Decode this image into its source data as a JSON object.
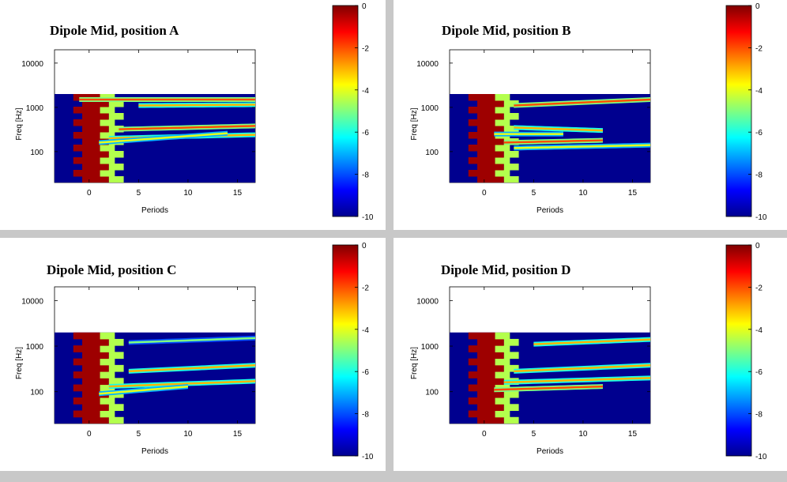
{
  "colors": {
    "background": "#c8c8c8",
    "panel": "#ffffff",
    "colormap": [
      "#00008f",
      "#0000ff",
      "#0080ff",
      "#00ffff",
      "#80ff80",
      "#ffff00",
      "#ff8000",
      "#ff0000",
      "#800000"
    ]
  },
  "chart_data": [
    {
      "type": "heatmap",
      "title": "Dipole Mid, position A",
      "xlabel": "Periods",
      "ylabel": "Freq [Hz]",
      "xticks": [
        "0",
        "5",
        "10",
        "15"
      ],
      "xtick_values": [
        0,
        5,
        10,
        15
      ],
      "xlim": [
        -3.5,
        16.8
      ],
      "yticks": [
        "100",
        "1000",
        "10000"
      ],
      "ytick_values": [
        100,
        1000,
        10000
      ],
      "ylim": [
        20,
        20000
      ],
      "yscale": "log",
      "data_ymax": 2000,
      "colorbar": {
        "ticks": [
          "0",
          "-2",
          "-4",
          "-6",
          "-8",
          "-10"
        ],
        "tick_values": [
          0,
          -2,
          -4,
          -6,
          -8,
          -10
        ],
        "range": [
          -10,
          0
        ]
      },
      "bands": [
        {
          "f0": 1500,
          "f1": 1500,
          "t0": -1,
          "t1": 16.8,
          "level": -2
        },
        {
          "f0": 1100,
          "f1": 1150,
          "t0": 5,
          "t1": 16.8,
          "level": -3
        },
        {
          "f0": 320,
          "f1": 380,
          "t0": 3,
          "t1": 16.8,
          "level": -2
        },
        {
          "f0": 200,
          "f1": 240,
          "t0": 2,
          "t1": 16.8,
          "level": -3
        },
        {
          "f0": 160,
          "f1": 260,
          "t0": 1,
          "t1": 14,
          "level": -4
        }
      ]
    },
    {
      "type": "heatmap",
      "title": "Dipole Mid, position B",
      "xlabel": "Periods",
      "ylabel": "Freq [Hz]",
      "xticks": [
        "0",
        "5",
        "10",
        "15"
      ],
      "xtick_values": [
        0,
        5,
        10,
        15
      ],
      "xlim": [
        -3.5,
        16.8
      ],
      "yticks": [
        "100",
        "1000",
        "10000"
      ],
      "ytick_values": [
        100,
        1000,
        10000
      ],
      "ylim": [
        20,
        20000
      ],
      "yscale": "log",
      "data_ymax": 2000,
      "colorbar": {
        "ticks": [
          "0",
          "-2",
          "-4",
          "-6",
          "-8",
          "-10"
        ],
        "tick_values": [
          0,
          -2,
          -4,
          -6,
          -8,
          -10
        ],
        "range": [
          -10,
          0
        ]
      },
      "bands": [
        {
          "f0": 1100,
          "f1": 1500,
          "t0": 3,
          "t1": 16.8,
          "level": -2
        },
        {
          "f0": 350,
          "f1": 300,
          "t0": 3,
          "t1": 12,
          "level": -3
        },
        {
          "f0": 160,
          "f1": 180,
          "t0": 2,
          "t1": 12,
          "level": -2
        },
        {
          "f0": 120,
          "f1": 140,
          "t0": 3,
          "t1": 16.8,
          "level": -4
        },
        {
          "f0": 250,
          "f1": 250,
          "t0": 1,
          "t1": 8,
          "level": -4
        }
      ]
    },
    {
      "type": "heatmap",
      "title": "Dipole Mid, position C",
      "xlabel": "Periods",
      "ylabel": "Freq [Hz]",
      "xticks": [
        "0",
        "5",
        "10",
        "15"
      ],
      "xtick_values": [
        0,
        5,
        10,
        15
      ],
      "xlim": [
        -3.5,
        16.8
      ],
      "yticks": [
        "100",
        "1000",
        "10000"
      ],
      "ytick_values": [
        100,
        1000,
        10000
      ],
      "ylim": [
        20,
        20000
      ],
      "yscale": "log",
      "data_ymax": 2000,
      "colorbar": {
        "ticks": [
          "0",
          "-2",
          "-4",
          "-6",
          "-8",
          "-10"
        ],
        "tick_values": [
          0,
          -2,
          -4,
          -6,
          -8,
          -10
        ],
        "range": [
          -10,
          0
        ]
      },
      "bands": [
        {
          "f0": 1200,
          "f1": 1500,
          "t0": 4,
          "t1": 16.8,
          "level": -5
        },
        {
          "f0": 280,
          "f1": 380,
          "t0": 4,
          "t1": 16.8,
          "level": -3
        },
        {
          "f0": 130,
          "f1": 170,
          "t0": 2,
          "t1": 16.8,
          "level": -3
        },
        {
          "f0": 90,
          "f1": 130,
          "t0": 1,
          "t1": 10,
          "level": -4
        }
      ]
    },
    {
      "type": "heatmap",
      "title": "Dipole Mid, position D",
      "xlabel": "Periods",
      "ylabel": "Freq [Hz]",
      "xticks": [
        "0",
        "5",
        "10",
        "15"
      ],
      "xtick_values": [
        0,
        5,
        10,
        15
      ],
      "xlim": [
        -3.5,
        16.8
      ],
      "yticks": [
        "100",
        "1000",
        "10000"
      ],
      "ytick_values": [
        100,
        1000,
        10000
      ],
      "ylim": [
        20,
        20000
      ],
      "yscale": "log",
      "data_ymax": 2000,
      "colorbar": {
        "ticks": [
          "0",
          "-2",
          "-4",
          "-6",
          "-8",
          "-10"
        ],
        "tick_values": [
          0,
          -2,
          -4,
          -6,
          -8,
          -10
        ],
        "range": [
          -10,
          0
        ]
      },
      "bands": [
        {
          "f0": 1100,
          "f1": 1400,
          "t0": 5,
          "t1": 16.8,
          "level": -3
        },
        {
          "f0": 280,
          "f1": 380,
          "t0": 3,
          "t1": 16.8,
          "level": -3
        },
        {
          "f0": 160,
          "f1": 200,
          "t0": 2,
          "t1": 16.8,
          "level": -3
        },
        {
          "f0": 110,
          "f1": 130,
          "t0": 1,
          "t1": 12,
          "level": -2
        }
      ]
    }
  ]
}
